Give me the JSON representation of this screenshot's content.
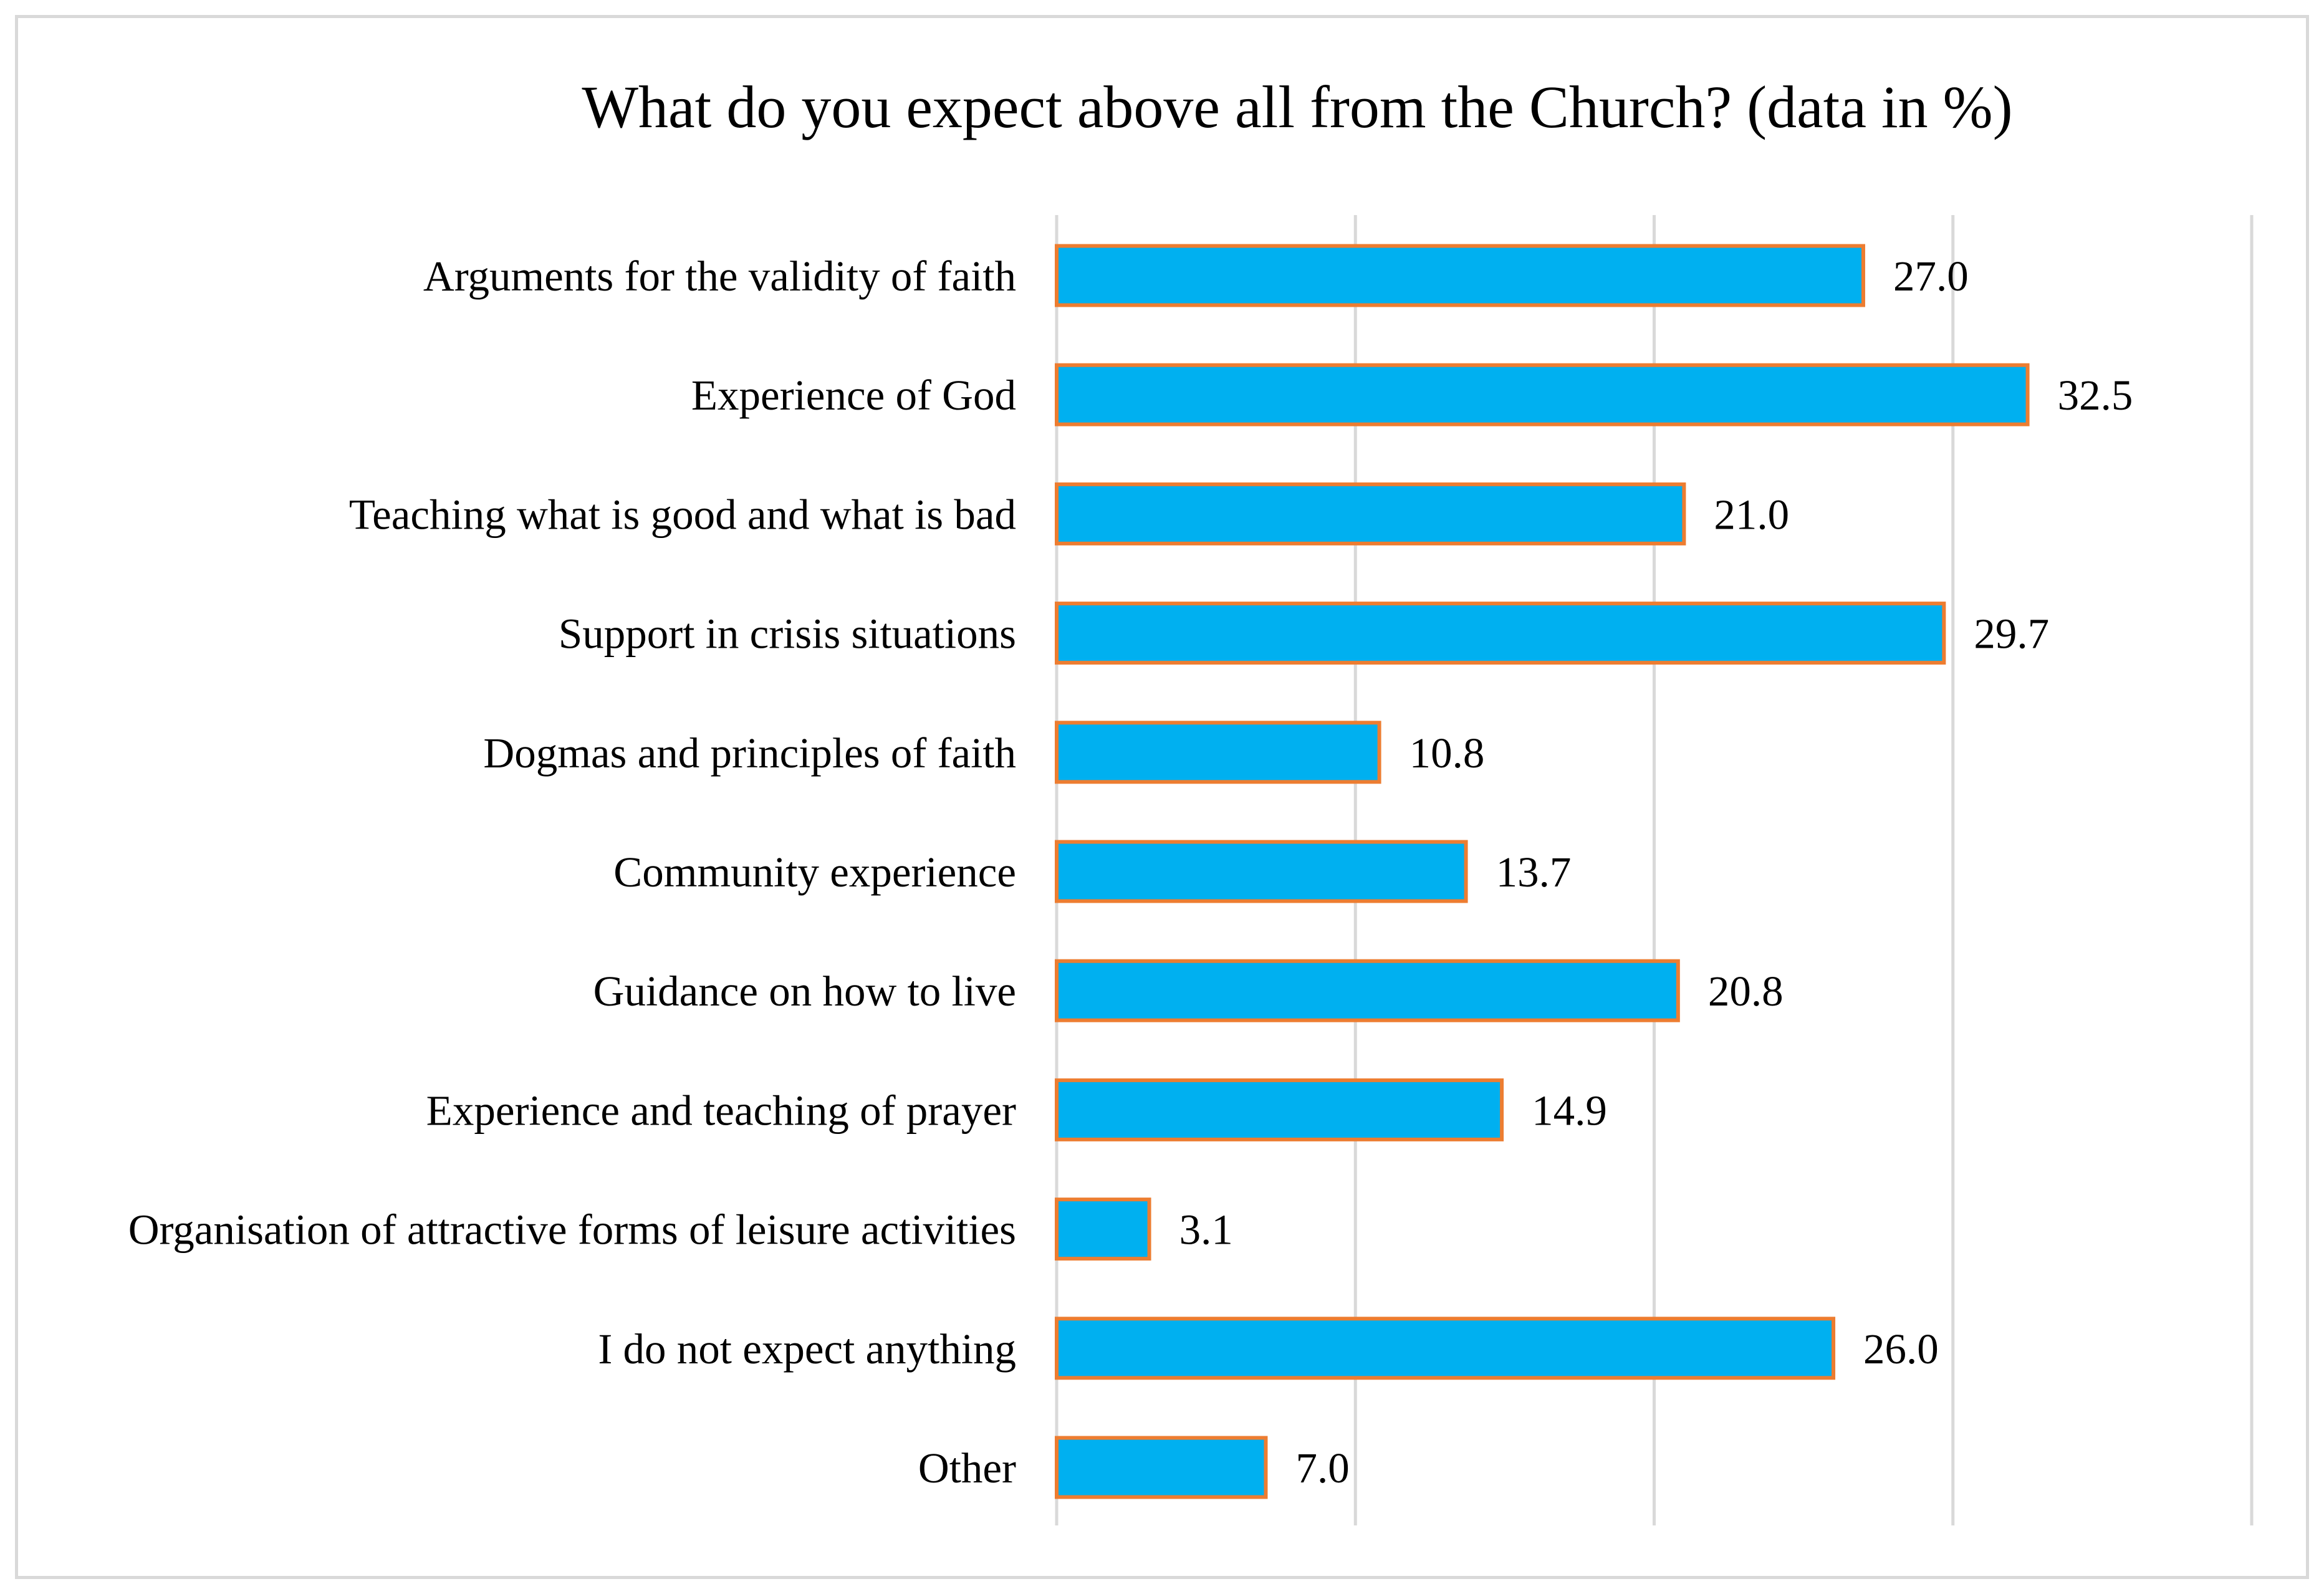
{
  "chart_data": {
    "type": "bar",
    "orientation": "horizontal",
    "title": "What do you expect above all from the Church? (data in %)",
    "xlabel": "",
    "ylabel": "",
    "xlim": [
      0,
      40
    ],
    "x_gridlines": [
      0,
      10,
      20,
      30,
      40
    ],
    "grid": true,
    "legend": "none",
    "colors": {
      "bar_fill": "#00b0f0",
      "bar_stroke": "#ed7d31",
      "gridline": "#d9d9d9",
      "frame": "#d9d9d9"
    },
    "categories": [
      "Arguments for the validity of faith",
      "Experience of God",
      "Teaching what is good and what is bad",
      "Support in crisis situations",
      "Dogmas and principles of faith",
      "Community experience",
      "Guidance on how to live",
      "Experience and teaching of prayer",
      "Organisation of attractive forms of leisure activities",
      "I do not expect anything",
      "Other"
    ],
    "values": [
      27.0,
      32.5,
      21.0,
      29.7,
      10.8,
      13.7,
      20.8,
      14.9,
      3.1,
      26.0,
      7.0
    ],
    "value_labels": [
      "27.0",
      "32.5",
      "21.0",
      "29.7",
      "10.8",
      "13.7",
      "20.8",
      "14.9",
      "3.1",
      "26.0",
      "7.0"
    ]
  }
}
